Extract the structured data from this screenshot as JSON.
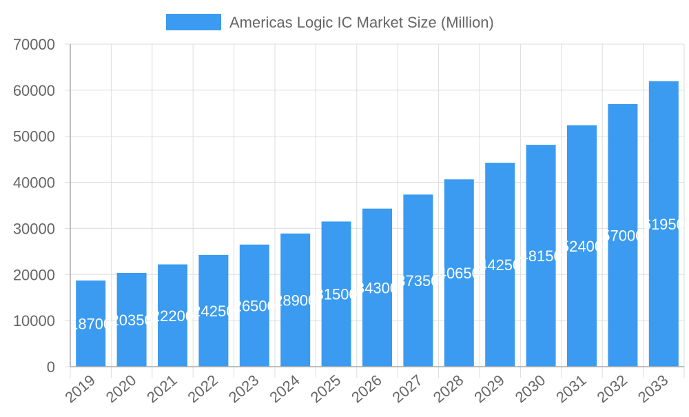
{
  "chart_data": {
    "type": "bar",
    "title": "",
    "xlabel": "",
    "ylabel": "",
    "categories": [
      "2019",
      "2020",
      "2021",
      "2022",
      "2023",
      "2024",
      "2025",
      "2026",
      "2027",
      "2028",
      "2029",
      "2030",
      "2031",
      "2032",
      "2033"
    ],
    "series": [
      {
        "name": "Americas Logic IC Market Size (Million)",
        "values": [
          18700,
          20350,
          22200,
          24250,
          26500,
          28900,
          31500,
          34300,
          37350,
          40650,
          44250,
          48150,
          52400,
          57000,
          61950
        ]
      }
    ],
    "ylim": [
      0,
      70000
    ],
    "yticks": [
      0,
      10000,
      20000,
      30000,
      40000,
      50000,
      60000,
      70000
    ],
    "grid": true,
    "legend": "top",
    "data_labels": true,
    "colors": {
      "bar": "#3a9bf0",
      "grid": "#dddddd",
      "axis_text": "#666666",
      "label": "#ffffff"
    }
  }
}
